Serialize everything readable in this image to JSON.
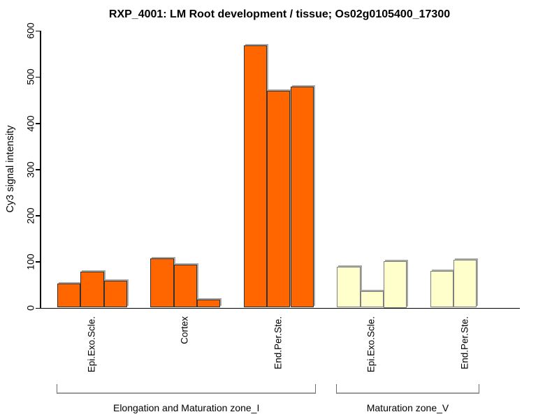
{
  "title": "RXP_4001: LM Root development / tissue; Os02g0105400_17300",
  "chart_data": {
    "type": "bar",
    "title": "RXP_4001: LM Root development / tissue; Os02g0105400_17300",
    "xlabel": "",
    "ylabel": "Cy3 signal intensity",
    "ylim": [
      0,
      600
    ],
    "yticks": [
      0,
      100,
      200,
      300,
      400,
      500,
      600
    ],
    "grid": false,
    "legend_position": "none",
    "bar_fill_colors": {
      "orange": "#FF6600",
      "light_yellow": "#FFFFCC"
    },
    "groups": [
      {
        "label": "Epi.Exo.Scle.",
        "fill": "#FF6600",
        "border": "#333333",
        "values": [
          52,
          78,
          58
        ]
      },
      {
        "label": "Cortex",
        "fill": "#FF6600",
        "border": "#333333",
        "values": [
          107,
          93,
          18
        ]
      },
      {
        "label": "End.Per.Ste.",
        "fill": "#FF6600",
        "border": "#333333",
        "values": [
          568,
          470,
          478
        ]
      },
      {
        "label": "Epi.Exo.Scle.",
        "fill": "#FFFFCC",
        "border": "#808080",
        "values": [
          89,
          35,
          100
        ]
      },
      {
        "label": "End.Per.Ste.",
        "fill": "#FFFFCC",
        "border": "#808080",
        "values": [
          80,
          103
        ]
      }
    ],
    "zone_brackets": [
      {
        "label": "Elongation and Maturation zone_I",
        "group_indexes": [
          0,
          1,
          2
        ]
      },
      {
        "label": "Maturation zone_V",
        "group_indexes": [
          3,
          4
        ]
      }
    ]
  }
}
